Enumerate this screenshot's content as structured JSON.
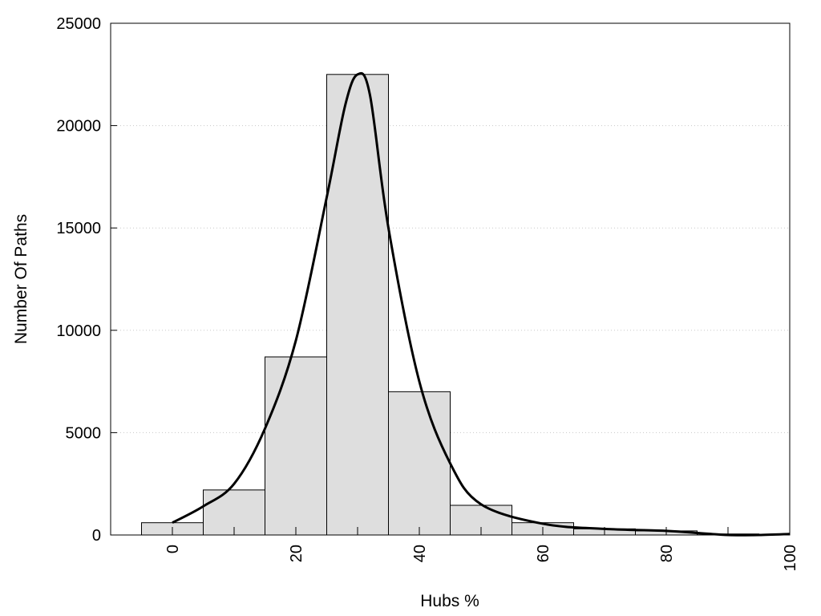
{
  "chart_data": {
    "type": "bar",
    "xlabel": "Hubs %",
    "ylabel": "Number Of Paths",
    "xlim": [
      -10,
      100
    ],
    "ylim": [
      0,
      25000
    ],
    "x_ticks": [
      0,
      20,
      40,
      60,
      80,
      100
    ],
    "y_ticks": [
      0,
      5000,
      10000,
      15000,
      20000,
      25000
    ],
    "bin_width": 10,
    "bins": [
      {
        "x": 0,
        "value": 600
      },
      {
        "x": 10,
        "value": 2200
      },
      {
        "x": 20,
        "value": 8700
      },
      {
        "x": 30,
        "value": 22500
      },
      {
        "x": 40,
        "value": 7000
      },
      {
        "x": 50,
        "value": 1450
      },
      {
        "x": 60,
        "value": 600
      },
      {
        "x": 70,
        "value": 300
      },
      {
        "x": 80,
        "value": 200
      },
      {
        "x": 90,
        "value": 50
      },
      {
        "x": 100,
        "value": 0
      }
    ],
    "density_curve": {
      "x": [
        0,
        5,
        10,
        15,
        20,
        25,
        28,
        30,
        32,
        35,
        40,
        45,
        50,
        60,
        70,
        80,
        85,
        90,
        95,
        100
      ],
      "y": [
        600,
        1400,
        2500,
        5200,
        9500,
        16500,
        21000,
        22500,
        21500,
        15000,
        7500,
        3500,
        1500,
        550,
        300,
        200,
        100,
        0,
        0,
        50
      ]
    },
    "grid": "horizontal dotted",
    "colors": {
      "bar_fill": "#dedede",
      "bar_stroke": "#000000",
      "curve": "#000000",
      "grid": "#c8c8c8"
    }
  }
}
